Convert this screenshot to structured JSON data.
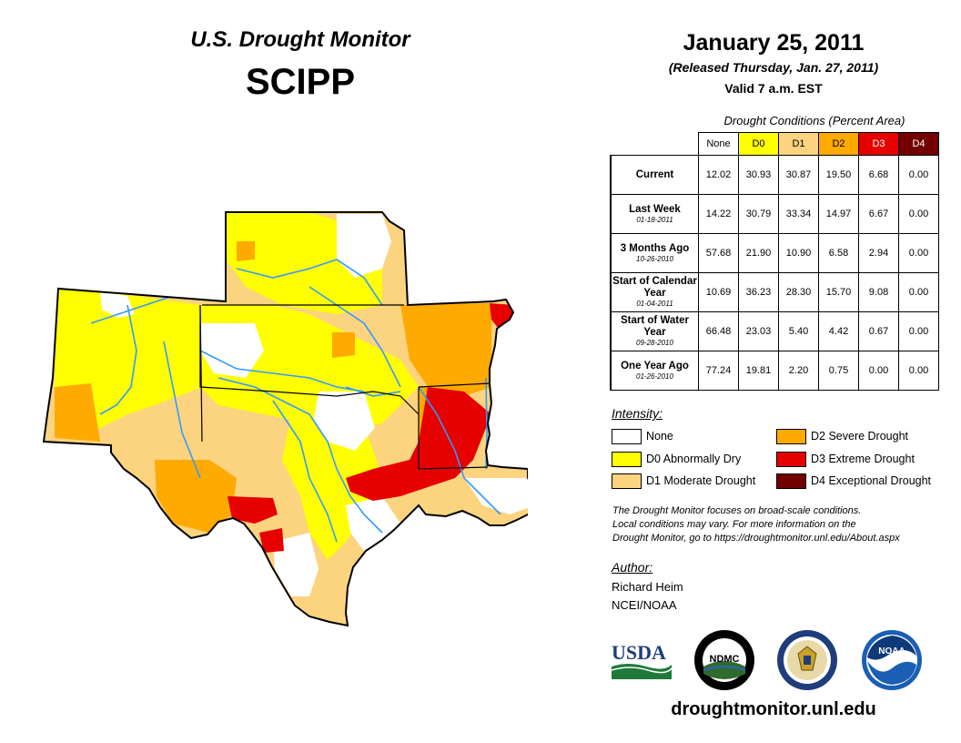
{
  "header": {
    "title": "U.S. Drought Monitor",
    "region": "SCIPP"
  },
  "release": {
    "date": "January 25, 2011",
    "released": "(Released Thursday, Jan. 27, 2011)",
    "valid": "Valid 7 a.m. EST"
  },
  "table": {
    "caption": "Drought Conditions (Percent Area)",
    "columns": [
      "None",
      "D0",
      "D1",
      "D2",
      "D3",
      "D4"
    ],
    "rows": [
      {
        "label": "Current",
        "date": "",
        "values": [
          "12.02",
          "30.93",
          "30.87",
          "19.50",
          "6.68",
          "0.00"
        ]
      },
      {
        "label": "Last Week",
        "date": "01-18-2011",
        "values": [
          "14.22",
          "30.79",
          "33.34",
          "14.97",
          "6.67",
          "0.00"
        ]
      },
      {
        "label": "3 Months Ago",
        "date": "10-26-2010",
        "values": [
          "57.68",
          "21.90",
          "10.90",
          "6.58",
          "2.94",
          "0.00"
        ]
      },
      {
        "label": "Start of Calendar Year",
        "date": "01-04-2011",
        "values": [
          "10.69",
          "36.23",
          "28.30",
          "15.70",
          "9.08",
          "0.00"
        ]
      },
      {
        "label": "Start of Water Year",
        "date": "09-28-2010",
        "values": [
          "66.48",
          "23.03",
          "5.40",
          "4.42",
          "0.67",
          "0.00"
        ]
      },
      {
        "label": "One Year Ago",
        "date": "01-26-2010",
        "values": [
          "77.24",
          "19.81",
          "2.20",
          "0.75",
          "0.00",
          "0.00"
        ]
      }
    ]
  },
  "intensity": {
    "title": "Intensity:",
    "items": [
      {
        "label": "None",
        "color": "#ffffff"
      },
      {
        "label": "D0 Abnormally Dry",
        "color": "#ffff00"
      },
      {
        "label": "D1 Moderate Drought",
        "color": "#fcd37f"
      },
      {
        "label": "D2 Severe Drought",
        "color": "#ffaa00"
      },
      {
        "label": "D3 Extreme Drought",
        "color": "#e60000"
      },
      {
        "label": "D4 Exceptional Drought",
        "color": "#730000"
      }
    ]
  },
  "note": {
    "line1": "The Drought Monitor focuses on broad-scale conditions.",
    "line2": "Local conditions may vary. For more information on the",
    "line3": "Drought Monitor, go to https://droughtmonitor.unl.edu/About.aspx"
  },
  "author": {
    "title": "Author:",
    "name": "Richard Heim",
    "org": "NCEI/NOAA"
  },
  "logos": {
    "usda": "USDA",
    "ndmc": "NDMC",
    "noaa": "NOAA"
  },
  "footer_url": "droughtmonitor.unl.edu",
  "colors": {
    "none": "#ffffff",
    "d0": "#ffff00",
    "d1": "#fcd37f",
    "d2": "#ffaa00",
    "d3": "#e60000",
    "d4": "#730000",
    "river": "#3399ff",
    "border": "#000000"
  }
}
